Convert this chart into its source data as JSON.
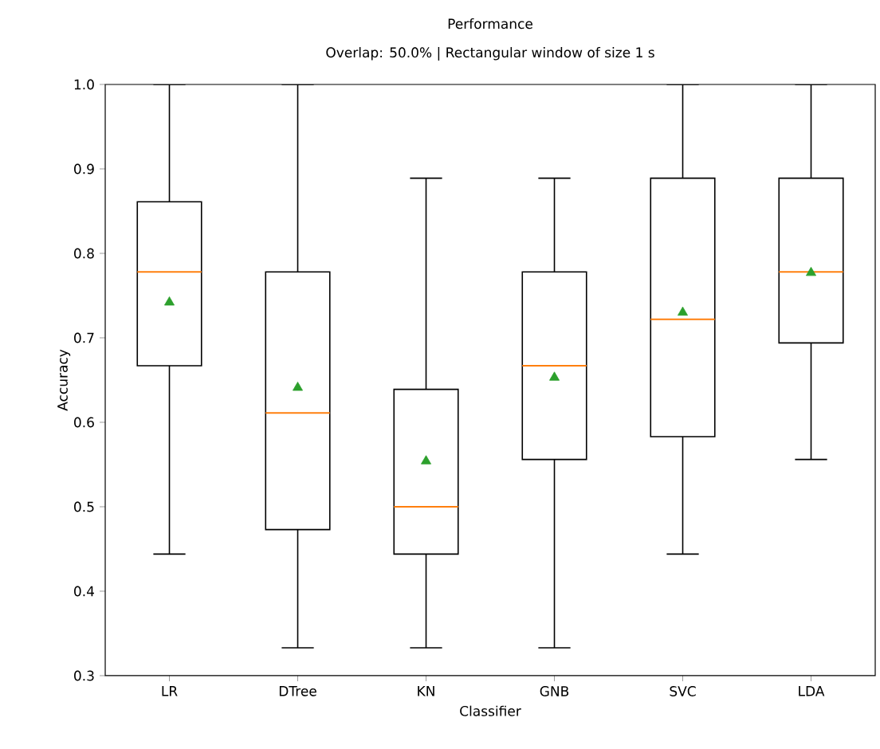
{
  "chart_data": {
    "type": "box",
    "title": "Performance",
    "subtitle": "Overlap: 50.0% | Rectangular window of size 1 s",
    "xlabel": "Classifier",
    "ylabel": "Accuracy",
    "categories": [
      "LR",
      "DTree",
      "KN",
      "GNB",
      "SVC",
      "LDA"
    ],
    "series": [
      {
        "color": "#000000",
        "boxes": [
          {
            "low": 0.444,
            "q1": 0.667,
            "median": 0.778,
            "q3": 0.861,
            "high": 1.0,
            "mean": 0.742
          },
          {
            "low": 0.333,
            "q1": 0.473,
            "median": 0.611,
            "q3": 0.778,
            "high": 1.0,
            "mean": 0.641
          },
          {
            "low": 0.333,
            "q1": 0.444,
            "median": 0.5,
            "q3": 0.639,
            "high": 0.889,
            "mean": 0.554
          },
          {
            "low": 0.333,
            "q1": 0.556,
            "median": 0.667,
            "q3": 0.778,
            "high": 0.889,
            "mean": 0.653
          },
          {
            "low": 0.444,
            "q1": 0.583,
            "median": 0.722,
            "q3": 0.889,
            "high": 1.0,
            "mean": 0.73
          },
          {
            "low": 0.556,
            "q1": 0.694,
            "median": 0.778,
            "q3": 0.889,
            "high": 1.0,
            "mean": 0.777
          }
        ]
      }
    ],
    "ylim": [
      0.3,
      1.0
    ],
    "yticks": [
      0.3,
      0.4,
      0.5,
      0.6,
      0.7,
      0.8,
      0.9,
      {
        "value": 1.0,
        "label": "1.0"
      }
    ],
    "grid": false
  }
}
